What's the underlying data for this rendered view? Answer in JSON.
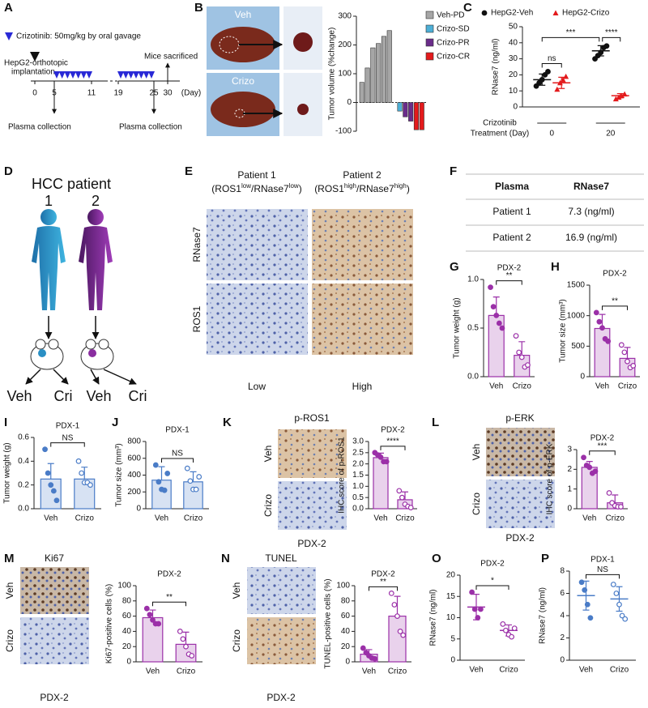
{
  "panel_letters": [
    "A",
    "B",
    "C",
    "D",
    "E",
    "F",
    "G",
    "H",
    "I",
    "J",
    "K",
    "L",
    "M",
    "N",
    "O",
    "P"
  ],
  "panel_a": {
    "legend": "Crizotinib: 50mg/kg by oral gavage",
    "implantation": [
      "HepG2-orthotopic",
      "implantation"
    ],
    "sacrificed": "Mice sacrificed",
    "plasma": [
      "Plasma collection",
      "Plasma collection"
    ],
    "days": [
      "0",
      "5",
      "11",
      "19",
      "25",
      "30"
    ],
    "unit": "(Day)"
  },
  "panel_b": {
    "images": [
      "Veh",
      "Crizo"
    ]
  },
  "panel_d": {
    "title": "HCC patient",
    "patients": [
      "1",
      "2"
    ],
    "arms": [
      "Veh",
      "Cri",
      "Veh",
      "Cri"
    ]
  },
  "panel_e": {
    "columns": [
      [
        "Patient 1",
        "(ROS1",
        "low",
        "/RNase7",
        "low",
        ")"
      ],
      [
        "Patient 2",
        "(ROS1",
        "high",
        "/RNase7",
        "high",
        ")"
      ]
    ],
    "rows": [
      "RNase7",
      "ROS1"
    ],
    "levels": [
      "Low",
      "High"
    ]
  },
  "panel_f": {
    "table": {
      "header": [
        "Plasma",
        "RNase7"
      ],
      "rows": [
        [
          "Patient 1",
          "7.3 (ng/ml)"
        ],
        [
          "Patient 2",
          "16.9 (ng/ml)"
        ]
      ]
    }
  },
  "panel_k": {
    "title": "p-ROS1",
    "rows": [
      "Veh",
      "Crizo"
    ],
    "caption": "PDX-2"
  },
  "panel_l": {
    "title": "p-ERK",
    "rows": [
      "Veh",
      "Crizo"
    ],
    "caption": "PDX-2"
  },
  "panel_m": {
    "title": "Ki67",
    "rows": [
      "Veh",
      "Crizo"
    ],
    "caption": "PDX-2"
  },
  "panel_n": {
    "title": "TUNEL",
    "rows": [
      "Veh",
      "Crizo"
    ],
    "caption": "PDX-2"
  },
  "chart_data": [
    {
      "type": "waterfall",
      "ylabel": "Tumor volume (%change)",
      "categories": [
        null,
        null,
        null,
        null,
        null,
        null,
        null,
        null,
        null,
        null,
        null
      ],
      "series": [
        {
          "name": "Veh-PD",
          "color": "#a6a6a6",
          "values": [
            70,
            120,
            190,
            205,
            230,
            250,
            null,
            null,
            null,
            null,
            null
          ]
        },
        {
          "name": "Crizo-SD",
          "color": "#4dafd6",
          "values": [
            null,
            null,
            null,
            null,
            null,
            null,
            -30,
            null,
            null,
            null,
            null
          ]
        },
        {
          "name": "Crizo-PR",
          "color": "#6a2c8a",
          "values": [
            null,
            null,
            null,
            null,
            null,
            null,
            null,
            -50,
            -65,
            null,
            null
          ]
        },
        {
          "name": "Crizo-CR",
          "color": "#e31a1c",
          "values": [
            null,
            null,
            null,
            null,
            null,
            null,
            null,
            null,
            null,
            -95,
            -95
          ]
        }
      ],
      "ylim": [
        -100,
        300
      ],
      "yticks": [
        -100,
        0,
        100,
        200,
        300
      ],
      "legend": "right"
    },
    {
      "type": "dot",
      "ylabel": "RNase7 (ng/ml)",
      "xlabel": [
        "Crizotinib",
        "Treatment (Day)"
      ],
      "categories": [
        0,
        20
      ],
      "series": [
        {
          "name": "HepG2-Veh",
          "color": "#111111",
          "marker": "circle",
          "points": [
            [
              13,
              15,
              17,
              20,
              22
            ],
            [
              30,
              32,
              34,
              37,
              38
            ]
          ],
          "means": [
            17,
            35
          ],
          "sd": [
            3.5,
            3.2
          ]
        },
        {
          "name": "HepG2-Crizo",
          "color": "#e31a1c",
          "marker": "triangle",
          "points": [
            [
              11,
              15,
              17,
              19
            ],
            [
              5,
              6,
              7,
              8
            ]
          ],
          "means": [
            15,
            7
          ],
          "sd": [
            3.5,
            1.3
          ]
        }
      ],
      "significance": [
        "ns",
        "***",
        "****"
      ],
      "ylim": [
        0,
        50
      ],
      "yticks": [
        0,
        10,
        20,
        30,
        40,
        50
      ],
      "legend": "top"
    },
    {
      "type": "bar",
      "title": "PDX-2",
      "ylabel": "Tumor weight (g)",
      "categories": [
        "Veh",
        "Crizo"
      ],
      "series": [
        {
          "color": "#9b30a8",
          "points": [
            [
              0.92,
              0.72,
              0.63,
              0.55,
              0.5
            ],
            [
              0.42,
              0.25,
              0.2,
              0.1,
              0.12
            ]
          ],
          "means": [
            0.63,
            0.22
          ],
          "sd": [
            0.19,
            0.14
          ]
        }
      ],
      "significance": [
        "**"
      ],
      "ylim": [
        0,
        1
      ],
      "yticks": [
        {
          "value": 0,
          "label": "0.0"
        },
        {
          "value": 0.5,
          "label": "0.5"
        },
        {
          "value": 1,
          "label": "1.0"
        }
      ]
    },
    {
      "type": "bar",
      "title": "PDX-2",
      "ylabel": "Tumor size (mm³)",
      "categories": [
        "Veh",
        "Crizo"
      ],
      "series": [
        {
          "color": "#9b30a8",
          "points": [
            [
              1050,
              900,
              800,
              620,
              580
            ],
            [
              520,
              400,
              250,
              150,
              180
            ]
          ],
          "means": [
            790,
            300
          ],
          "sd": [
            230,
            180
          ]
        }
      ],
      "significance": [
        "**"
      ],
      "ylim": [
        0,
        1500
      ],
      "yticks": [
        0,
        500,
        1000,
        1500
      ]
    },
    {
      "type": "bar",
      "title": "PDX-1",
      "ylabel": "Tumor weight (g)",
      "categories": [
        "Veh",
        "Crizo"
      ],
      "series": [
        {
          "color": "#4a7cc7",
          "points": [
            [
              0.5,
              0.3,
              0.2,
              0.15,
              0.07
            ],
            [
              0.4,
              0.3,
              0.22,
              0.22,
              0.2
            ]
          ],
          "means": [
            0.25,
            0.25
          ],
          "sd": [
            0.13,
            0.1
          ]
        }
      ],
      "significance": [
        "NS"
      ],
      "ylim": [
        0,
        0.6
      ],
      "yticks": [
        {
          "value": 0,
          "label": "0.0"
        },
        {
          "value": 0.2,
          "label": "0.2"
        },
        {
          "value": 0.4,
          "label": "0.4"
        },
        {
          "value": 0.6,
          "label": "0.6"
        }
      ]
    },
    {
      "type": "bar",
      "title": "PDX-1",
      "ylabel": "Tumor size (mm³)",
      "categories": [
        "Veh",
        "Crizo"
      ],
      "series": [
        {
          "color": "#4a7cc7",
          "points": [
            [
              520,
              320,
              230,
              220,
              420
            ],
            [
              480,
              330,
              230,
              230,
              380
            ]
          ],
          "means": [
            340,
            320
          ],
          "sd": [
            160,
            120
          ]
        }
      ],
      "significance": [
        "NS"
      ],
      "ylim": [
        0,
        800
      ],
      "yticks": [
        0,
        200,
        400,
        600,
        800
      ]
    },
    {
      "type": "bar",
      "title": "PDX-2",
      "ylabel": "IHC score of p-ROS1",
      "categories": [
        "Veh",
        "Crizo"
      ],
      "series": [
        {
          "color": "#9b30a8",
          "points": [
            [
              2.5,
              2.4,
              2.3,
              2.1,
              2.1
            ],
            [
              0.8,
              0.5,
              0.2,
              0.1,
              0.05
            ]
          ],
          "means": [
            2.28,
            0.4
          ],
          "sd": [
            0.2,
            0.35
          ]
        }
      ],
      "significance": [
        "****"
      ],
      "ylim": [
        0,
        3
      ],
      "yticks": [
        {
          "value": 0,
          "label": "0.0"
        },
        {
          "value": 0.5,
          "label": "0.5"
        },
        {
          "value": 1,
          "label": "1.0"
        },
        {
          "value": 1.5,
          "label": "1.5"
        },
        {
          "value": 2,
          "label": "2.0"
        },
        {
          "value": 2.5,
          "label": "2.5"
        },
        {
          "value": 3,
          "label": "3.0"
        }
      ]
    },
    {
      "type": "bar",
      "title": "PDX-2",
      "ylabel": "IHC score of p-ERK",
      "categories": [
        "Veh",
        "Crizo"
      ],
      "series": [
        {
          "color": "#9b30a8",
          "points": [
            [
              2.6,
              2.2,
              2.1,
              1.8,
              1.9
            ],
            [
              0.8,
              0.3,
              0.15,
              0.1,
              0.1
            ]
          ],
          "means": [
            2.1,
            0.3
          ],
          "sd": [
            0.3,
            0.4
          ]
        }
      ],
      "significance": [
        "***"
      ],
      "ylim": [
        0,
        3
      ],
      "yticks": [
        0,
        1,
        2,
        3
      ]
    },
    {
      "type": "bar",
      "title": "PDX-2",
      "ylabel": "Ki67-positive cells (%)",
      "categories": [
        "Veh",
        "Crizo"
      ],
      "series": [
        {
          "color": "#9b30a8",
          "points": [
            [
              70,
              62,
              55,
              50,
              50
            ],
            [
              40,
              30,
              20,
              10,
              8
            ]
          ],
          "means": [
            58,
            23
          ],
          "sd": [
            10,
            16
          ]
        }
      ],
      "significance": [
        "**"
      ],
      "ylim": [
        0,
        100
      ],
      "yticks": [
        0,
        20,
        40,
        60,
        80,
        100
      ]
    },
    {
      "type": "bar",
      "title": "PDX-2",
      "ylabel": "TUNEL-positive cells (%)",
      "categories": [
        "Veh",
        "Crizo"
      ],
      "series": [
        {
          "color": "#9b30a8",
          "points": [
            [
              18,
              12,
              8,
              5,
              4
            ],
            [
              90,
              75,
              60,
              40,
              35
            ]
          ],
          "means": [
            10,
            60
          ],
          "sd": [
            6,
            26
          ]
        }
      ],
      "significance": [
        "**"
      ],
      "ylim": [
        0,
        100
      ],
      "yticks": [
        0,
        20,
        40,
        60,
        80,
        100
      ]
    },
    {
      "type": "dot",
      "title": "PDX-2",
      "ylabel": "RNase7 (ng/ml)",
      "categories": [
        "Veh",
        "Crizo"
      ],
      "series": [
        {
          "color": "#9b30a8",
          "points": [
            [
              16,
              12,
              10,
              12
            ],
            [
              8.5,
              7,
              6,
              5.5,
              7.5
            ]
          ],
          "means": [
            12.5,
            7
          ],
          "sd": [
            3,
            1.3
          ]
        }
      ],
      "significance": [
        "*"
      ],
      "ylim": [
        0,
        20
      ],
      "yticks": [
        0,
        5,
        10,
        15,
        20
      ]
    },
    {
      "type": "dot",
      "title": "PDX-1",
      "ylabel": "RNase7 (ng/ml)",
      "categories": [
        "Veh",
        "Crizo"
      ],
      "series": [
        {
          "color": "#4a7cc7",
          "points": [
            [
              7,
              6.3,
              5,
              3.8
            ],
            [
              6.8,
              6,
              5,
              4,
              3.7
            ]
          ],
          "means": [
            5.8,
            5.5
          ],
          "sd": [
            1.3,
            1.1
          ]
        }
      ],
      "significance": [
        "NS"
      ],
      "ylim": [
        0,
        8
      ],
      "yticks": [
        0,
        2,
        4,
        6,
        8
      ]
    }
  ]
}
